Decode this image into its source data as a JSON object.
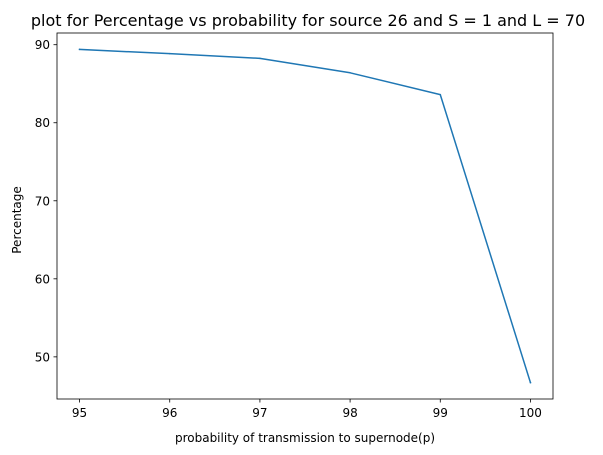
{
  "chart_data": {
    "type": "line",
    "title": "plot for Percentage vs probability for source 26 and S = 1 and L = 70",
    "xlabel": "probability of transmission to supernode(p)",
    "ylabel": "Percentage",
    "xlim": [
      94.75,
      100.25
    ],
    "ylim": [
      44.6,
      91.5
    ],
    "xticks": [
      "95",
      "96",
      "97",
      "98",
      "99",
      "100"
    ],
    "yticks": [
      "50",
      "60",
      "70",
      "80",
      "90"
    ],
    "grid": false,
    "legend": "none",
    "series": [
      {
        "color": "#1f77b4",
        "x": [
          95,
          96,
          97,
          98,
          99,
          100
        ],
        "y": [
          89.4,
          88.85,
          88.25,
          86.4,
          83.6,
          46.7
        ]
      }
    ]
  }
}
